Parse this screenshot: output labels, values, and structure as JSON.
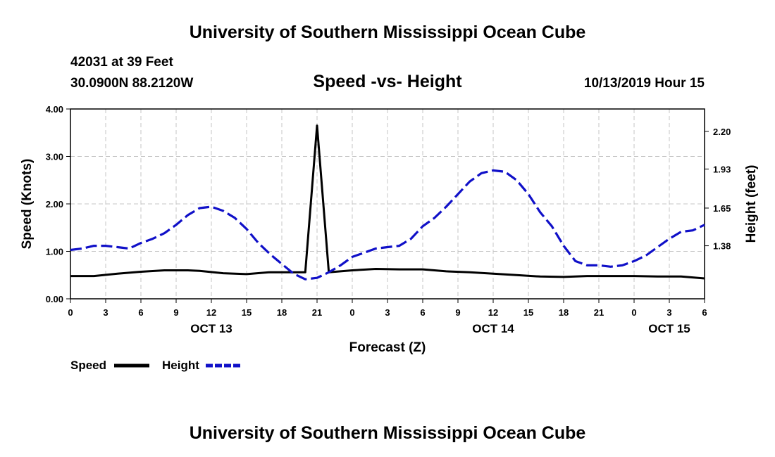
{
  "header": {
    "top_title": "University of Southern Mississippi Ocean Cube",
    "station_line": "42031 at 39 Feet",
    "coords_line": "30.0900N 88.2120W",
    "plot_title": "Speed -vs- Height",
    "datetime": "10/13/2019 Hour 15",
    "bottom_title": "University of Southern Mississippi Ocean Cube"
  },
  "legend": {
    "speed_label": "Speed",
    "height_label": "Height"
  },
  "colors": {
    "speed": "#000000",
    "height": "#1010c8",
    "grid": "#c4c4c4"
  },
  "chart_data": {
    "type": "line",
    "title": "Speed -vs- Height",
    "xlabel": "Forecast (Z)",
    "ylabel_left": "Speed (Knots)",
    "ylabel_right": "Height (feet)",
    "x_range_hours": [
      0,
      54
    ],
    "y_left_range": [
      0,
      4
    ],
    "y_right_range": [
      1.0,
      2.36
    ],
    "y_left_ticks": [
      "0.00",
      "1.00",
      "2.00",
      "3.00",
      "4.00"
    ],
    "y_right_ticks": [
      {
        "value": 1.38,
        "label": "1.38"
      },
      {
        "value": 1.65,
        "label": "1.65"
      },
      {
        "value": 1.93,
        "label": "1.93"
      },
      {
        "value": 2.2,
        "label": "2.20"
      }
    ],
    "x_ticks": [
      {
        "hour": 0,
        "label": "0"
      },
      {
        "hour": 3,
        "label": "3"
      },
      {
        "hour": 6,
        "label": "6"
      },
      {
        "hour": 9,
        "label": "9"
      },
      {
        "hour": 12,
        "label": "12"
      },
      {
        "hour": 15,
        "label": "15"
      },
      {
        "hour": 18,
        "label": "18"
      },
      {
        "hour": 21,
        "label": "21"
      },
      {
        "hour": 24,
        "label": "0"
      },
      {
        "hour": 27,
        "label": "3"
      },
      {
        "hour": 30,
        "label": "6"
      },
      {
        "hour": 33,
        "label": "9"
      },
      {
        "hour": 36,
        "label": "12"
      },
      {
        "hour": 39,
        "label": "15"
      },
      {
        "hour": 42,
        "label": "18"
      },
      {
        "hour": 45,
        "label": "21"
      },
      {
        "hour": 48,
        "label": "0"
      },
      {
        "hour": 51,
        "label": "3"
      },
      {
        "hour": 54,
        "label": "6"
      }
    ],
    "date_labels": [
      {
        "hour": 12,
        "label": "OCT 13"
      },
      {
        "hour": 36,
        "label": "OCT 14"
      },
      {
        "hour": 51,
        "label": "OCT 15"
      }
    ],
    "grid": true,
    "series": [
      {
        "name": "Speed",
        "axis": "left",
        "style": "solid",
        "points": [
          [
            0,
            0.48
          ],
          [
            2,
            0.48
          ],
          [
            4,
            0.53
          ],
          [
            6,
            0.57
          ],
          [
            8,
            0.6
          ],
          [
            10,
            0.6
          ],
          [
            11,
            0.59
          ],
          [
            13,
            0.54
          ],
          [
            15,
            0.52
          ],
          [
            17,
            0.56
          ],
          [
            19,
            0.56
          ],
          [
            20,
            0.56
          ],
          [
            21,
            3.65
          ],
          [
            22,
            0.56
          ],
          [
            24,
            0.6
          ],
          [
            26,
            0.63
          ],
          [
            28,
            0.62
          ],
          [
            30,
            0.62
          ],
          [
            32,
            0.58
          ],
          [
            34,
            0.56
          ],
          [
            36,
            0.53
          ],
          [
            38,
            0.5
          ],
          [
            40,
            0.47
          ],
          [
            42,
            0.46
          ],
          [
            44,
            0.48
          ],
          [
            46,
            0.48
          ],
          [
            48,
            0.48
          ],
          [
            50,
            0.47
          ],
          [
            52,
            0.47
          ],
          [
            54,
            0.43
          ]
        ]
      },
      {
        "name": "Height",
        "axis": "right",
        "style": "dashed",
        "points": [
          [
            0,
            1.35
          ],
          [
            1,
            1.36
          ],
          [
            2,
            1.38
          ],
          [
            3,
            1.38
          ],
          [
            4,
            1.37
          ],
          [
            5,
            1.36
          ],
          [
            6,
            1.4
          ],
          [
            7,
            1.43
          ],
          [
            8,
            1.47
          ],
          [
            9,
            1.53
          ],
          [
            10,
            1.6
          ],
          [
            11,
            1.65
          ],
          [
            12,
            1.66
          ],
          [
            13,
            1.63
          ],
          [
            14,
            1.58
          ],
          [
            15,
            1.5
          ],
          [
            16,
            1.4
          ],
          [
            17,
            1.32
          ],
          [
            18,
            1.25
          ],
          [
            19,
            1.18
          ],
          [
            20,
            1.14
          ],
          [
            21,
            1.15
          ],
          [
            22,
            1.19
          ],
          [
            23,
            1.24
          ],
          [
            24,
            1.3
          ],
          [
            25,
            1.33
          ],
          [
            26,
            1.36
          ],
          [
            27,
            1.37
          ],
          [
            28,
            1.38
          ],
          [
            29,
            1.43
          ],
          [
            30,
            1.52
          ],
          [
            31,
            1.58
          ],
          [
            32,
            1.66
          ],
          [
            33,
            1.75
          ],
          [
            34,
            1.84
          ],
          [
            35,
            1.9
          ],
          [
            36,
            1.92
          ],
          [
            37,
            1.91
          ],
          [
            38,
            1.85
          ],
          [
            39,
            1.75
          ],
          [
            40,
            1.62
          ],
          [
            41,
            1.52
          ],
          [
            42,
            1.38
          ],
          [
            43,
            1.27
          ],
          [
            44,
            1.24
          ],
          [
            45,
            1.24
          ],
          [
            46,
            1.23
          ],
          [
            47,
            1.24
          ],
          [
            48,
            1.27
          ],
          [
            49,
            1.31
          ],
          [
            50,
            1.37
          ],
          [
            51,
            1.43
          ],
          [
            52,
            1.48
          ],
          [
            53,
            1.49
          ],
          [
            54,
            1.53
          ]
        ]
      }
    ]
  }
}
